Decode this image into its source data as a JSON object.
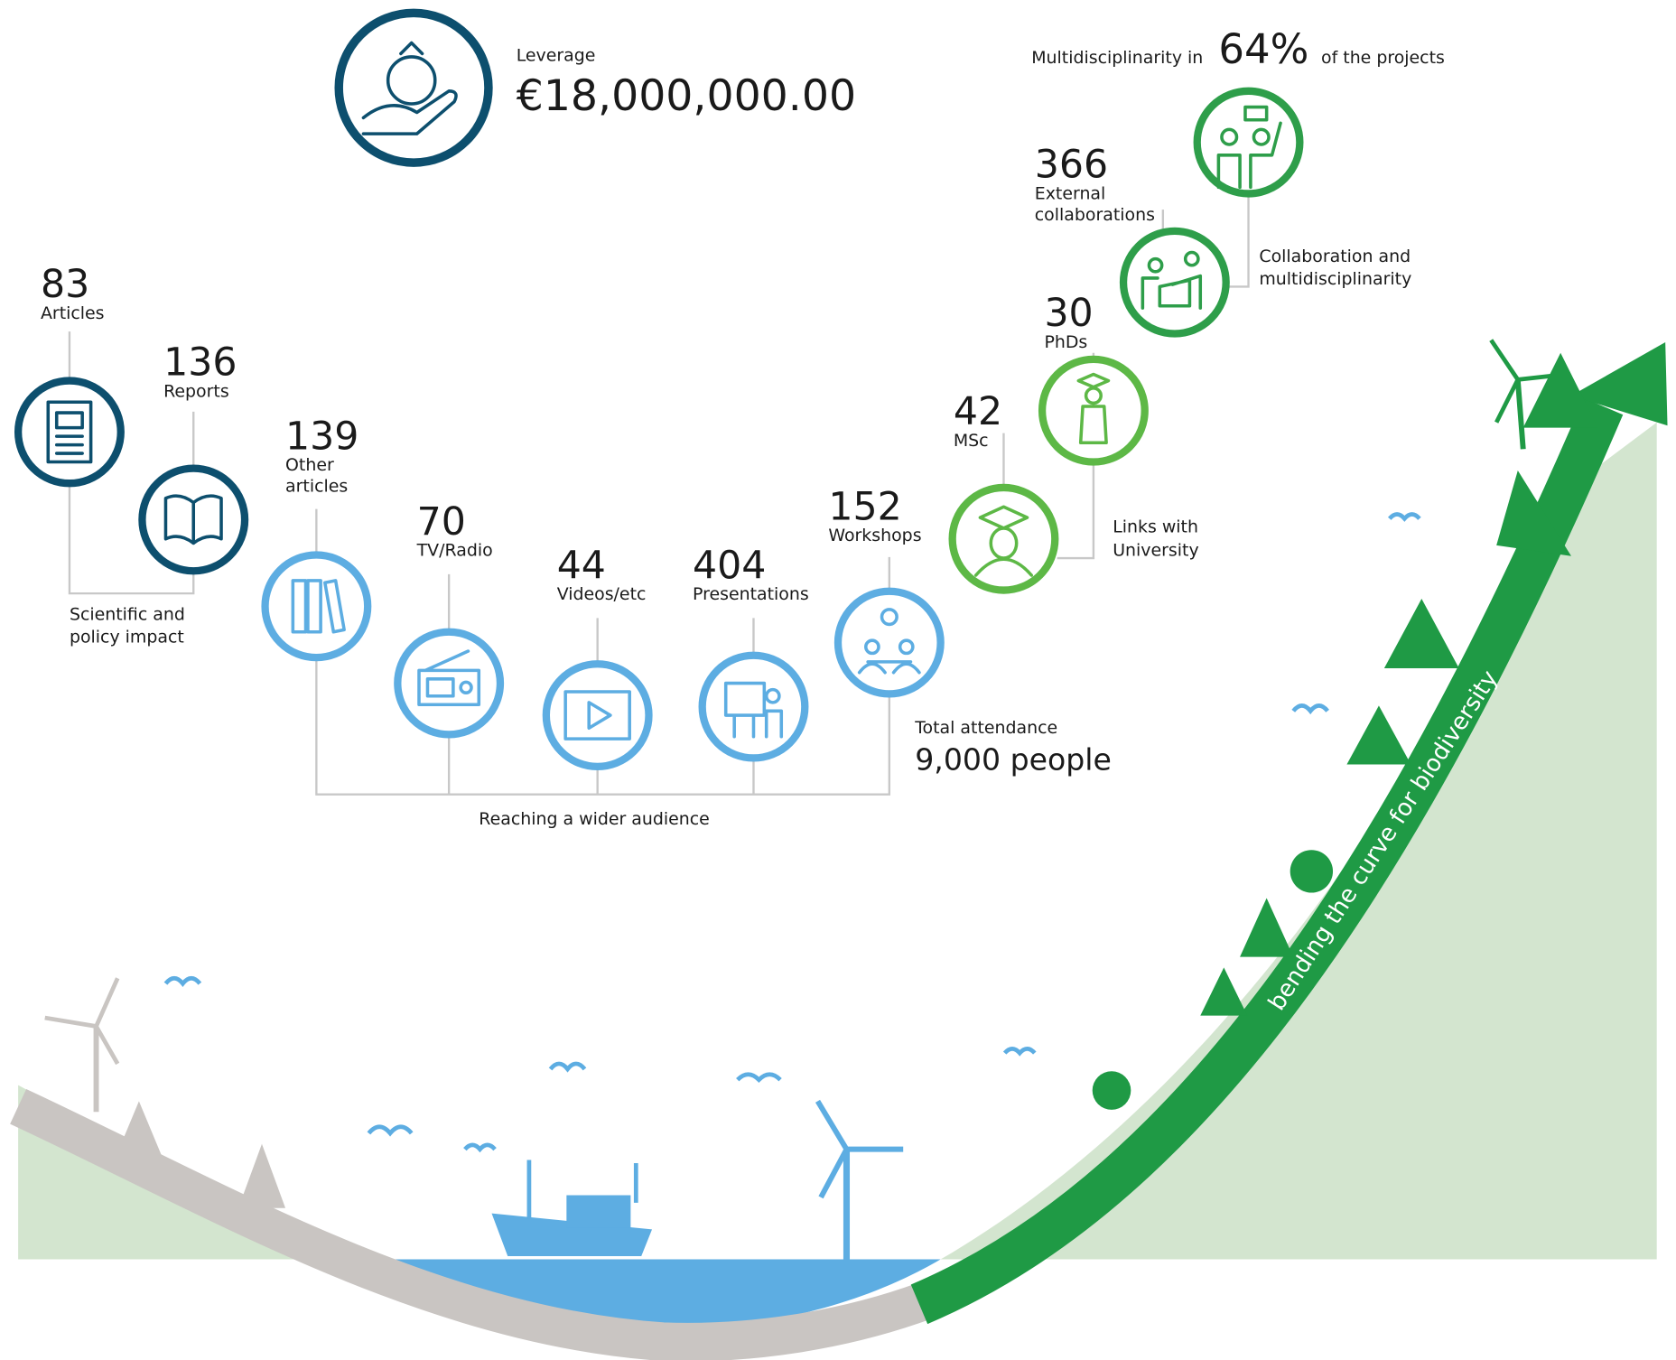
{
  "leverage": {
    "label": "Leverage",
    "amount": "€18,000,000.00"
  },
  "multidisciplinarity": {
    "prefix": "Multidisciplinarity in",
    "value": "64%",
    "suffix": "of the projects"
  },
  "metrics": [
    {
      "value": 83,
      "label": [
        "Articles"
      ]
    },
    {
      "value": 136,
      "label": [
        "Reports"
      ]
    },
    {
      "value": 139,
      "label": [
        "Other",
        "articles"
      ]
    },
    {
      "value": 70,
      "label": [
        "TV/Radio"
      ]
    },
    {
      "value": 44,
      "label": [
        "Videos/etc"
      ]
    },
    {
      "value": 404,
      "label": [
        "Presentations"
      ]
    },
    {
      "value": 152,
      "label": [
        "Workshops"
      ]
    },
    {
      "value": 42,
      "label": [
        "MSc"
      ]
    },
    {
      "value": 30,
      "label": [
        "PhDs"
      ]
    },
    {
      "value": 366,
      "label": [
        "External",
        "collaborations"
      ]
    }
  ],
  "groups": {
    "scientific": [
      "Scientific and",
      "policy impact"
    ],
    "audience": [
      "Reaching a wider audience"
    ],
    "university": [
      "Links with",
      "University"
    ],
    "collaboration": [
      "Collaboration and",
      "multidisciplinarity"
    ]
  },
  "attendance": {
    "label": "Total attendance",
    "value": "9,000 people"
  },
  "curve_label": "bending the curve for biodiversity"
}
